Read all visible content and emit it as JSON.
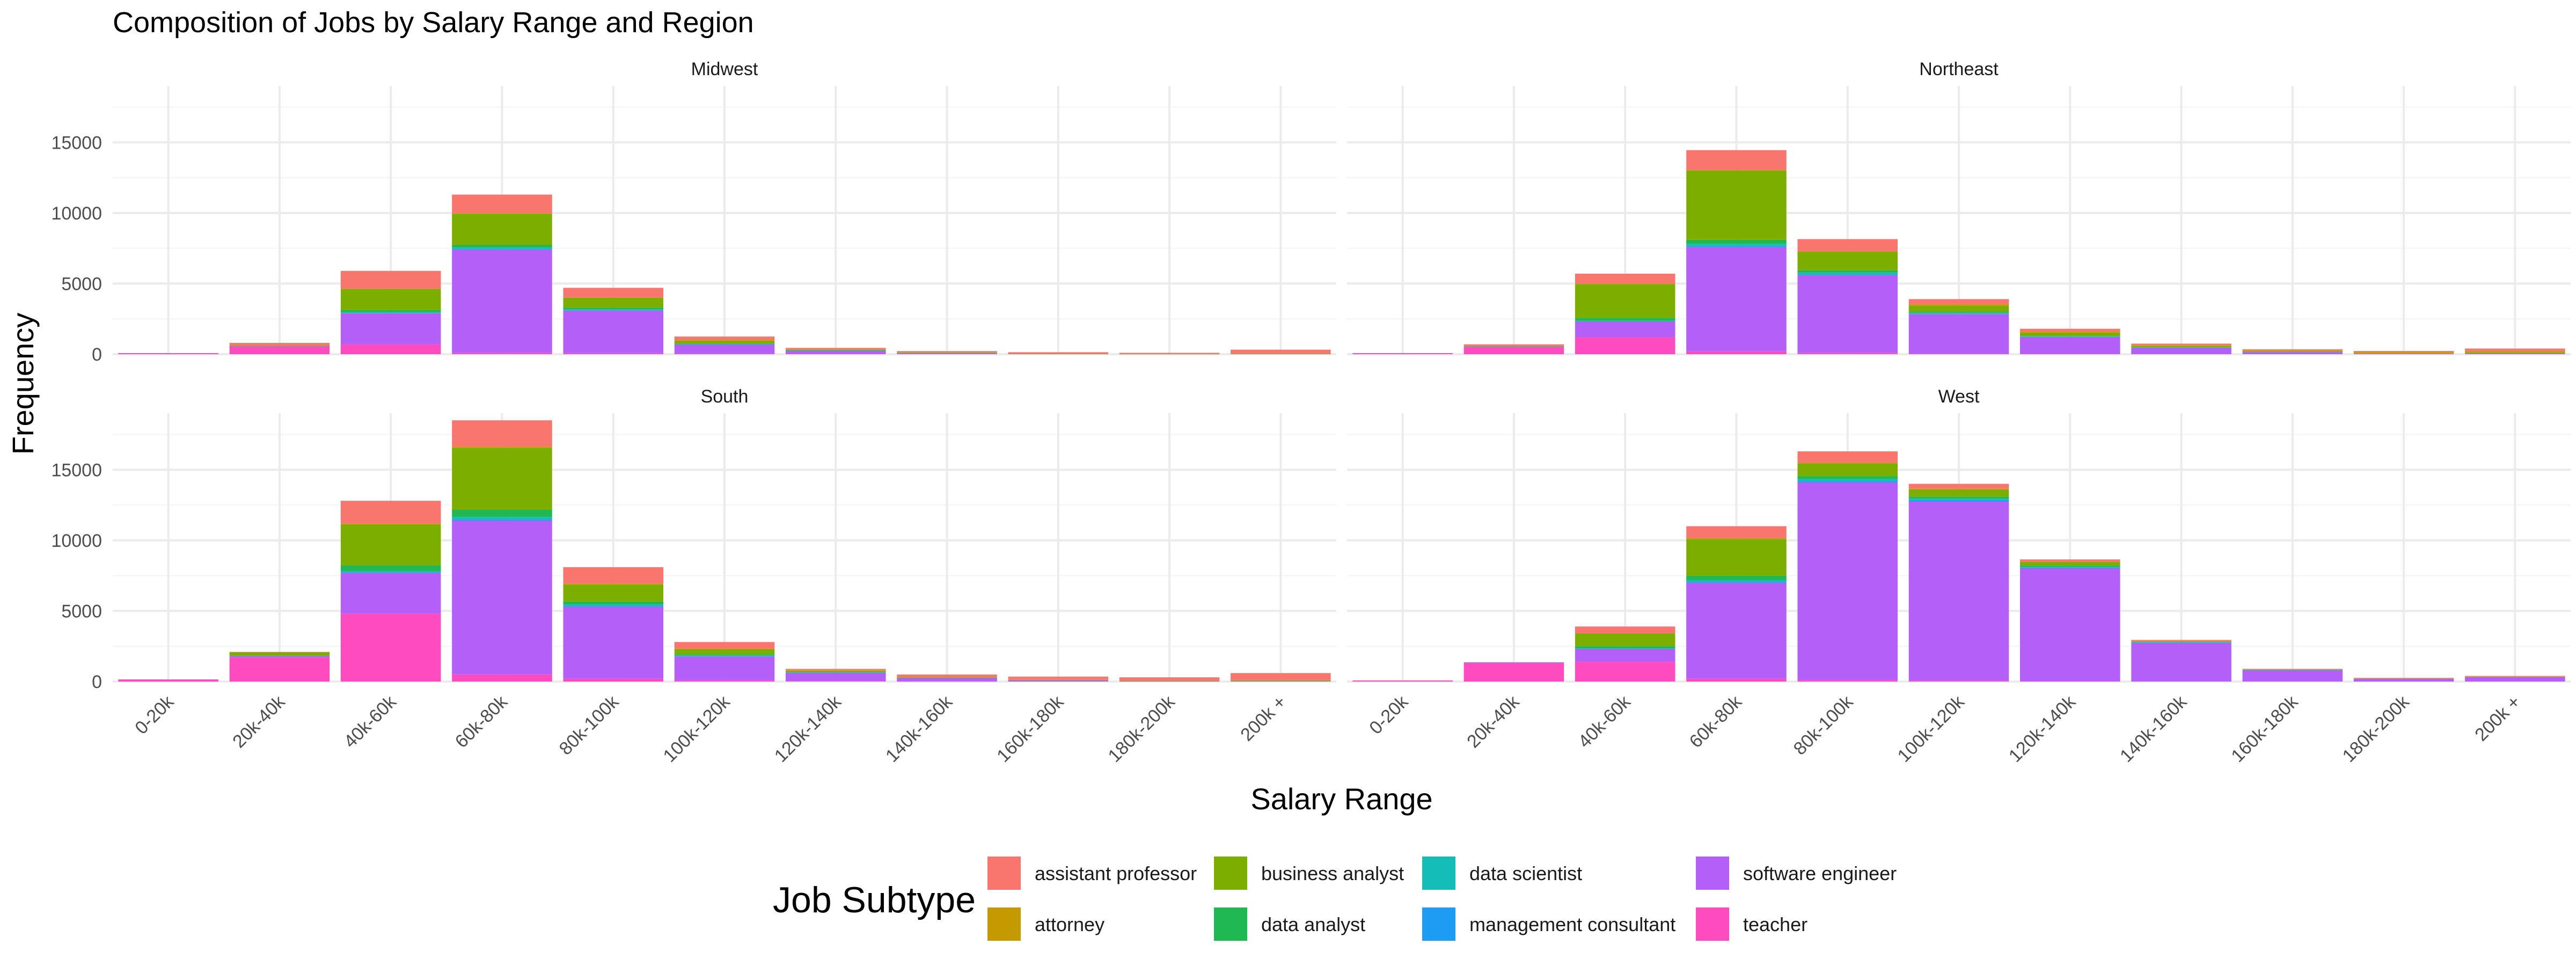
{
  "chart_data": {
    "type": "bar",
    "stacked": true,
    "faceted": true,
    "title": "Composition of Jobs by Salary Range and Region",
    "xlabel": "Salary Range",
    "ylabel": "Frequency",
    "ylim": [
      0,
      19000
    ],
    "yticks": [
      0,
      5000,
      10000,
      15000
    ],
    "grid": true,
    "legend_position": "bottom",
    "legend_title": "Job Subtype",
    "categories": [
      "0-20k",
      "20k-40k",
      "40k-60k",
      "60k-80k",
      "80k-100k",
      "100k-120k",
      "120k-140k",
      "140k-160k",
      "160k-180k",
      "180k-200k",
      "200k +"
    ],
    "subtypes": [
      {
        "name": "assistant professor",
        "color": "#F8766D"
      },
      {
        "name": "attorney",
        "color": "#C49A00"
      },
      {
        "name": "business analyst",
        "color": "#7CAE00"
      },
      {
        "name": "data analyst",
        "color": "#1FB852"
      },
      {
        "name": "data scientist",
        "color": "#14BDB8"
      },
      {
        "name": "management consultant",
        "color": "#1E9BF2"
      },
      {
        "name": "software engineer",
        "color": "#B45FF8"
      },
      {
        "name": "teacher",
        "color": "#FF4BC0"
      }
    ],
    "stack_order_bottom_to_top": [
      "teacher",
      "software engineer",
      "management consultant",
      "data scientist",
      "data analyst",
      "business analyst",
      "attorney",
      "assistant professor"
    ],
    "panels": [
      {
        "region": "Midwest",
        "series": {
          "teacher": [
            80,
            550,
            700,
            100,
            80,
            40,
            20,
            0,
            0,
            0,
            0
          ],
          "software engineer": [
            0,
            30,
            2200,
            7300,
            3000,
            650,
            230,
            80,
            30,
            10,
            20
          ],
          "management consultant": [
            0,
            0,
            20,
            50,
            30,
            10,
            10,
            0,
            0,
            0,
            0
          ],
          "data scientist": [
            0,
            0,
            50,
            100,
            70,
            20,
            10,
            10,
            0,
            0,
            0
          ],
          "data analyst": [
            0,
            0,
            150,
            200,
            120,
            30,
            10,
            0,
            0,
            0,
            0
          ],
          "business analyst": [
            0,
            50,
            1500,
            2200,
            700,
            200,
            50,
            20,
            10,
            10,
            20
          ],
          "attorney": [
            0,
            0,
            20,
            30,
            30,
            30,
            20,
            20,
            20,
            10,
            30
          ],
          "assistant professor": [
            0,
            170,
            1260,
            1320,
            670,
            270,
            100,
            90,
            80,
            70,
            250
          ]
        }
      },
      {
        "region": "Northeast",
        "series": {
          "teacher": [
            80,
            500,
            1200,
            200,
            100,
            40,
            20,
            0,
            0,
            0,
            0
          ],
          "software engineer": [
            0,
            50,
            1100,
            7400,
            5500,
            2800,
            1200,
            450,
            150,
            50,
            70
          ],
          "management consultant": [
            0,
            0,
            20,
            50,
            40,
            20,
            10,
            10,
            0,
            0,
            0
          ],
          "data scientist": [
            0,
            0,
            50,
            150,
            150,
            80,
            30,
            20,
            10,
            0,
            0
          ],
          "data analyst": [
            0,
            0,
            200,
            300,
            150,
            60,
            20,
            0,
            0,
            0,
            0
          ],
          "business analyst": [
            0,
            50,
            2400,
            4900,
            1300,
            450,
            250,
            100,
            50,
            20,
            50
          ],
          "attorney": [
            0,
            0,
            30,
            50,
            60,
            80,
            80,
            60,
            60,
            80,
            120
          ],
          "assistant professor": [
            0,
            100,
            700,
            1400,
            850,
            370,
            190,
            110,
            80,
            80,
            160
          ]
        }
      },
      {
        "region": "South",
        "series": {
          "teacher": [
            150,
            1700,
            4800,
            500,
            200,
            80,
            30,
            10,
            0,
            0,
            0
          ],
          "software engineer": [
            0,
            100,
            2900,
            10900,
            5100,
            1700,
            600,
            250,
            100,
            50,
            50
          ],
          "management consultant": [
            0,
            0,
            30,
            60,
            50,
            20,
            10,
            0,
            0,
            0,
            0
          ],
          "data scientist": [
            0,
            0,
            100,
            200,
            120,
            50,
            10,
            10,
            0,
            0,
            0
          ],
          "data analyst": [
            0,
            20,
            400,
            500,
            200,
            80,
            20,
            0,
            0,
            0,
            0
          ],
          "business analyst": [
            0,
            250,
            2900,
            4400,
            1200,
            350,
            100,
            30,
            20,
            10,
            30
          ],
          "attorney": [
            0,
            0,
            50,
            70,
            60,
            50,
            40,
            40,
            40,
            40,
            60
          ],
          "assistant professor": [
            0,
            30,
            1620,
            1870,
            1170,
            470,
            90,
            160,
            190,
            200,
            460
          ]
        }
      },
      {
        "region": "West",
        "series": {
          "teacher": [
            80,
            1300,
            1400,
            200,
            100,
            50,
            20,
            0,
            0,
            0,
            0
          ],
          "software engineer": [
            0,
            50,
            900,
            6800,
            14000,
            12700,
            8000,
            2750,
            800,
            200,
            320
          ],
          "management consultant": [
            0,
            0,
            20,
            50,
            100,
            100,
            50,
            20,
            10,
            0,
            0
          ],
          "data scientist": [
            0,
            0,
            30,
            150,
            150,
            100,
            50,
            20,
            10,
            0,
            0
          ],
          "data analyst": [
            0,
            0,
            150,
            300,
            200,
            150,
            100,
            20,
            0,
            0,
            0
          ],
          "business analyst": [
            0,
            0,
            900,
            2600,
            900,
            500,
            250,
            50,
            20,
            10,
            20
          ],
          "attorney": [
            0,
            0,
            20,
            50,
            50,
            50,
            20,
            20,
            10,
            10,
            10
          ],
          "assistant professor": [
            0,
            20,
            480,
            850,
            800,
            350,
            160,
            70,
            50,
            40,
            50
          ]
        }
      }
    ]
  }
}
